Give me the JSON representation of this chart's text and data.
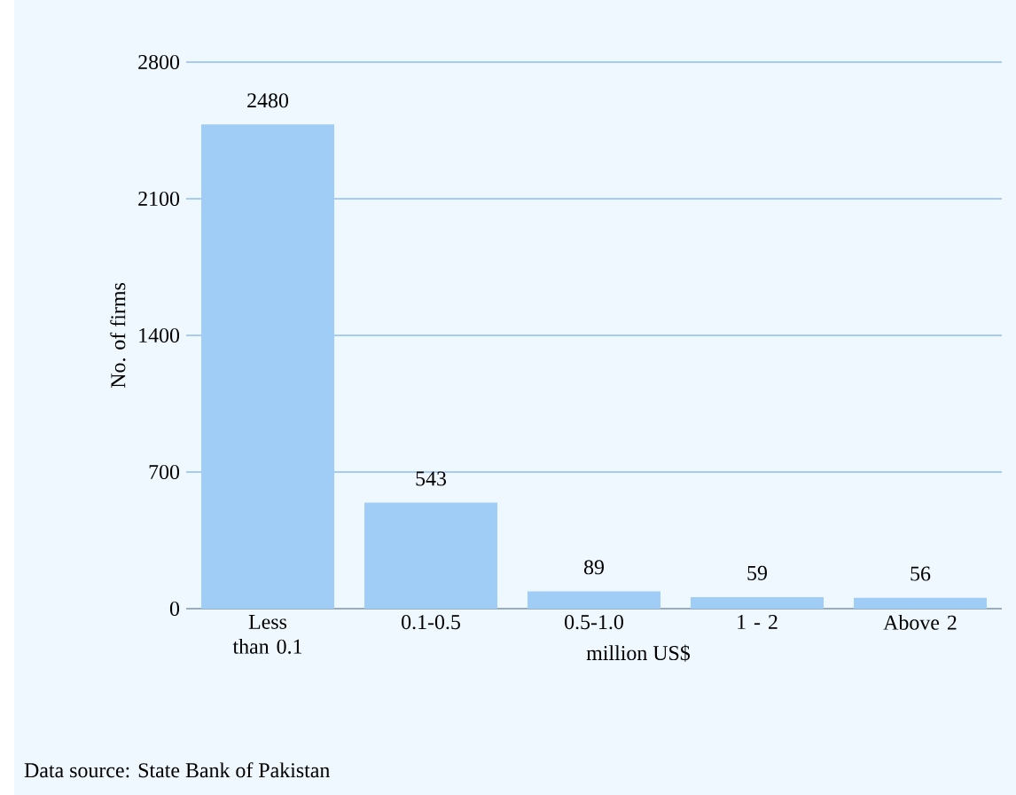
{
  "chart_data": {
    "type": "bar",
    "xlabel": "million US$",
    "ylabel": "No. of firms",
    "categories": [
      "Less than 0.1",
      "0.1-0.5",
      "0.5-1.0",
      "1 - 2",
      "Above 2"
    ],
    "values": [
      2480,
      543,
      89,
      59,
      56
    ],
    "color": "#a0cdf6",
    "ylim": [
      0,
      2800
    ],
    "yticks": [
      0,
      700,
      1400,
      2100,
      2800
    ],
    "grid": "y",
    "data_labels": true,
    "annotations": [
      "Data source: State Bank of Pakistan"
    ]
  }
}
